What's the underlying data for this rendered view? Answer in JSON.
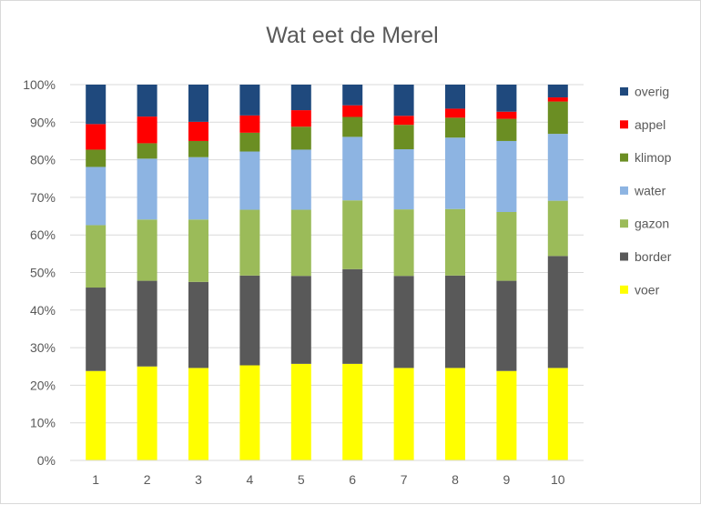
{
  "chart_data": {
    "type": "bar",
    "stacked": true,
    "normalized": true,
    "title": "Wat eet de Merel",
    "xlabel": "",
    "ylabel": "",
    "categories": [
      "1",
      "2",
      "3",
      "4",
      "5",
      "6",
      "7",
      "8",
      "9",
      "10"
    ],
    "ylim": [
      0,
      100
    ],
    "yticks": [
      "0%",
      "10%",
      "20%",
      "30%",
      "40%",
      "50%",
      "60%",
      "70%",
      "80%",
      "90%",
      "100%"
    ],
    "grid": "horizontal",
    "legend_position": "right",
    "series": [
      {
        "name": "voer",
        "color": "#ffff00",
        "values": [
          23.8,
          25.0,
          24.6,
          25.3,
          25.7,
          25.7,
          24.6,
          24.6,
          23.8,
          24.6
        ]
      },
      {
        "name": "border",
        "color": "#595959",
        "values": [
          22.2,
          22.8,
          22.9,
          23.9,
          23.4,
          25.2,
          24.5,
          24.6,
          24.0,
          29.8
        ]
      },
      {
        "name": "gazon",
        "color": "#9bbb59",
        "values": [
          16.6,
          16.3,
          16.6,
          17.5,
          17.6,
          18.3,
          17.7,
          17.7,
          18.3,
          14.7
        ]
      },
      {
        "name": "water",
        "color": "#8db4e2",
        "values": [
          15.5,
          16.2,
          16.6,
          15.5,
          16.0,
          16.9,
          16.0,
          19.0,
          18.9,
          17.8
        ]
      },
      {
        "name": "klimop",
        "color": "#6b8e23",
        "values": [
          4.6,
          4.1,
          4.3,
          5.0,
          6.1,
          5.3,
          6.5,
          5.3,
          5.9,
          8.6
        ]
      },
      {
        "name": "appel",
        "color": "#ff0000",
        "values": [
          6.8,
          7.1,
          5.1,
          4.6,
          4.4,
          3.1,
          2.4,
          2.4,
          1.9,
          1.1
        ]
      },
      {
        "name": "overig",
        "color": "#1f497d",
        "values": [
          10.5,
          8.5,
          9.9,
          8.2,
          6.8,
          5.5,
          8.3,
          6.4,
          7.2,
          3.4
        ]
      }
    ]
  },
  "colors": {
    "background": "#ffffff",
    "gridline": "#d9d9d9",
    "axis": "#d9d9d9",
    "text": "#595959"
  }
}
